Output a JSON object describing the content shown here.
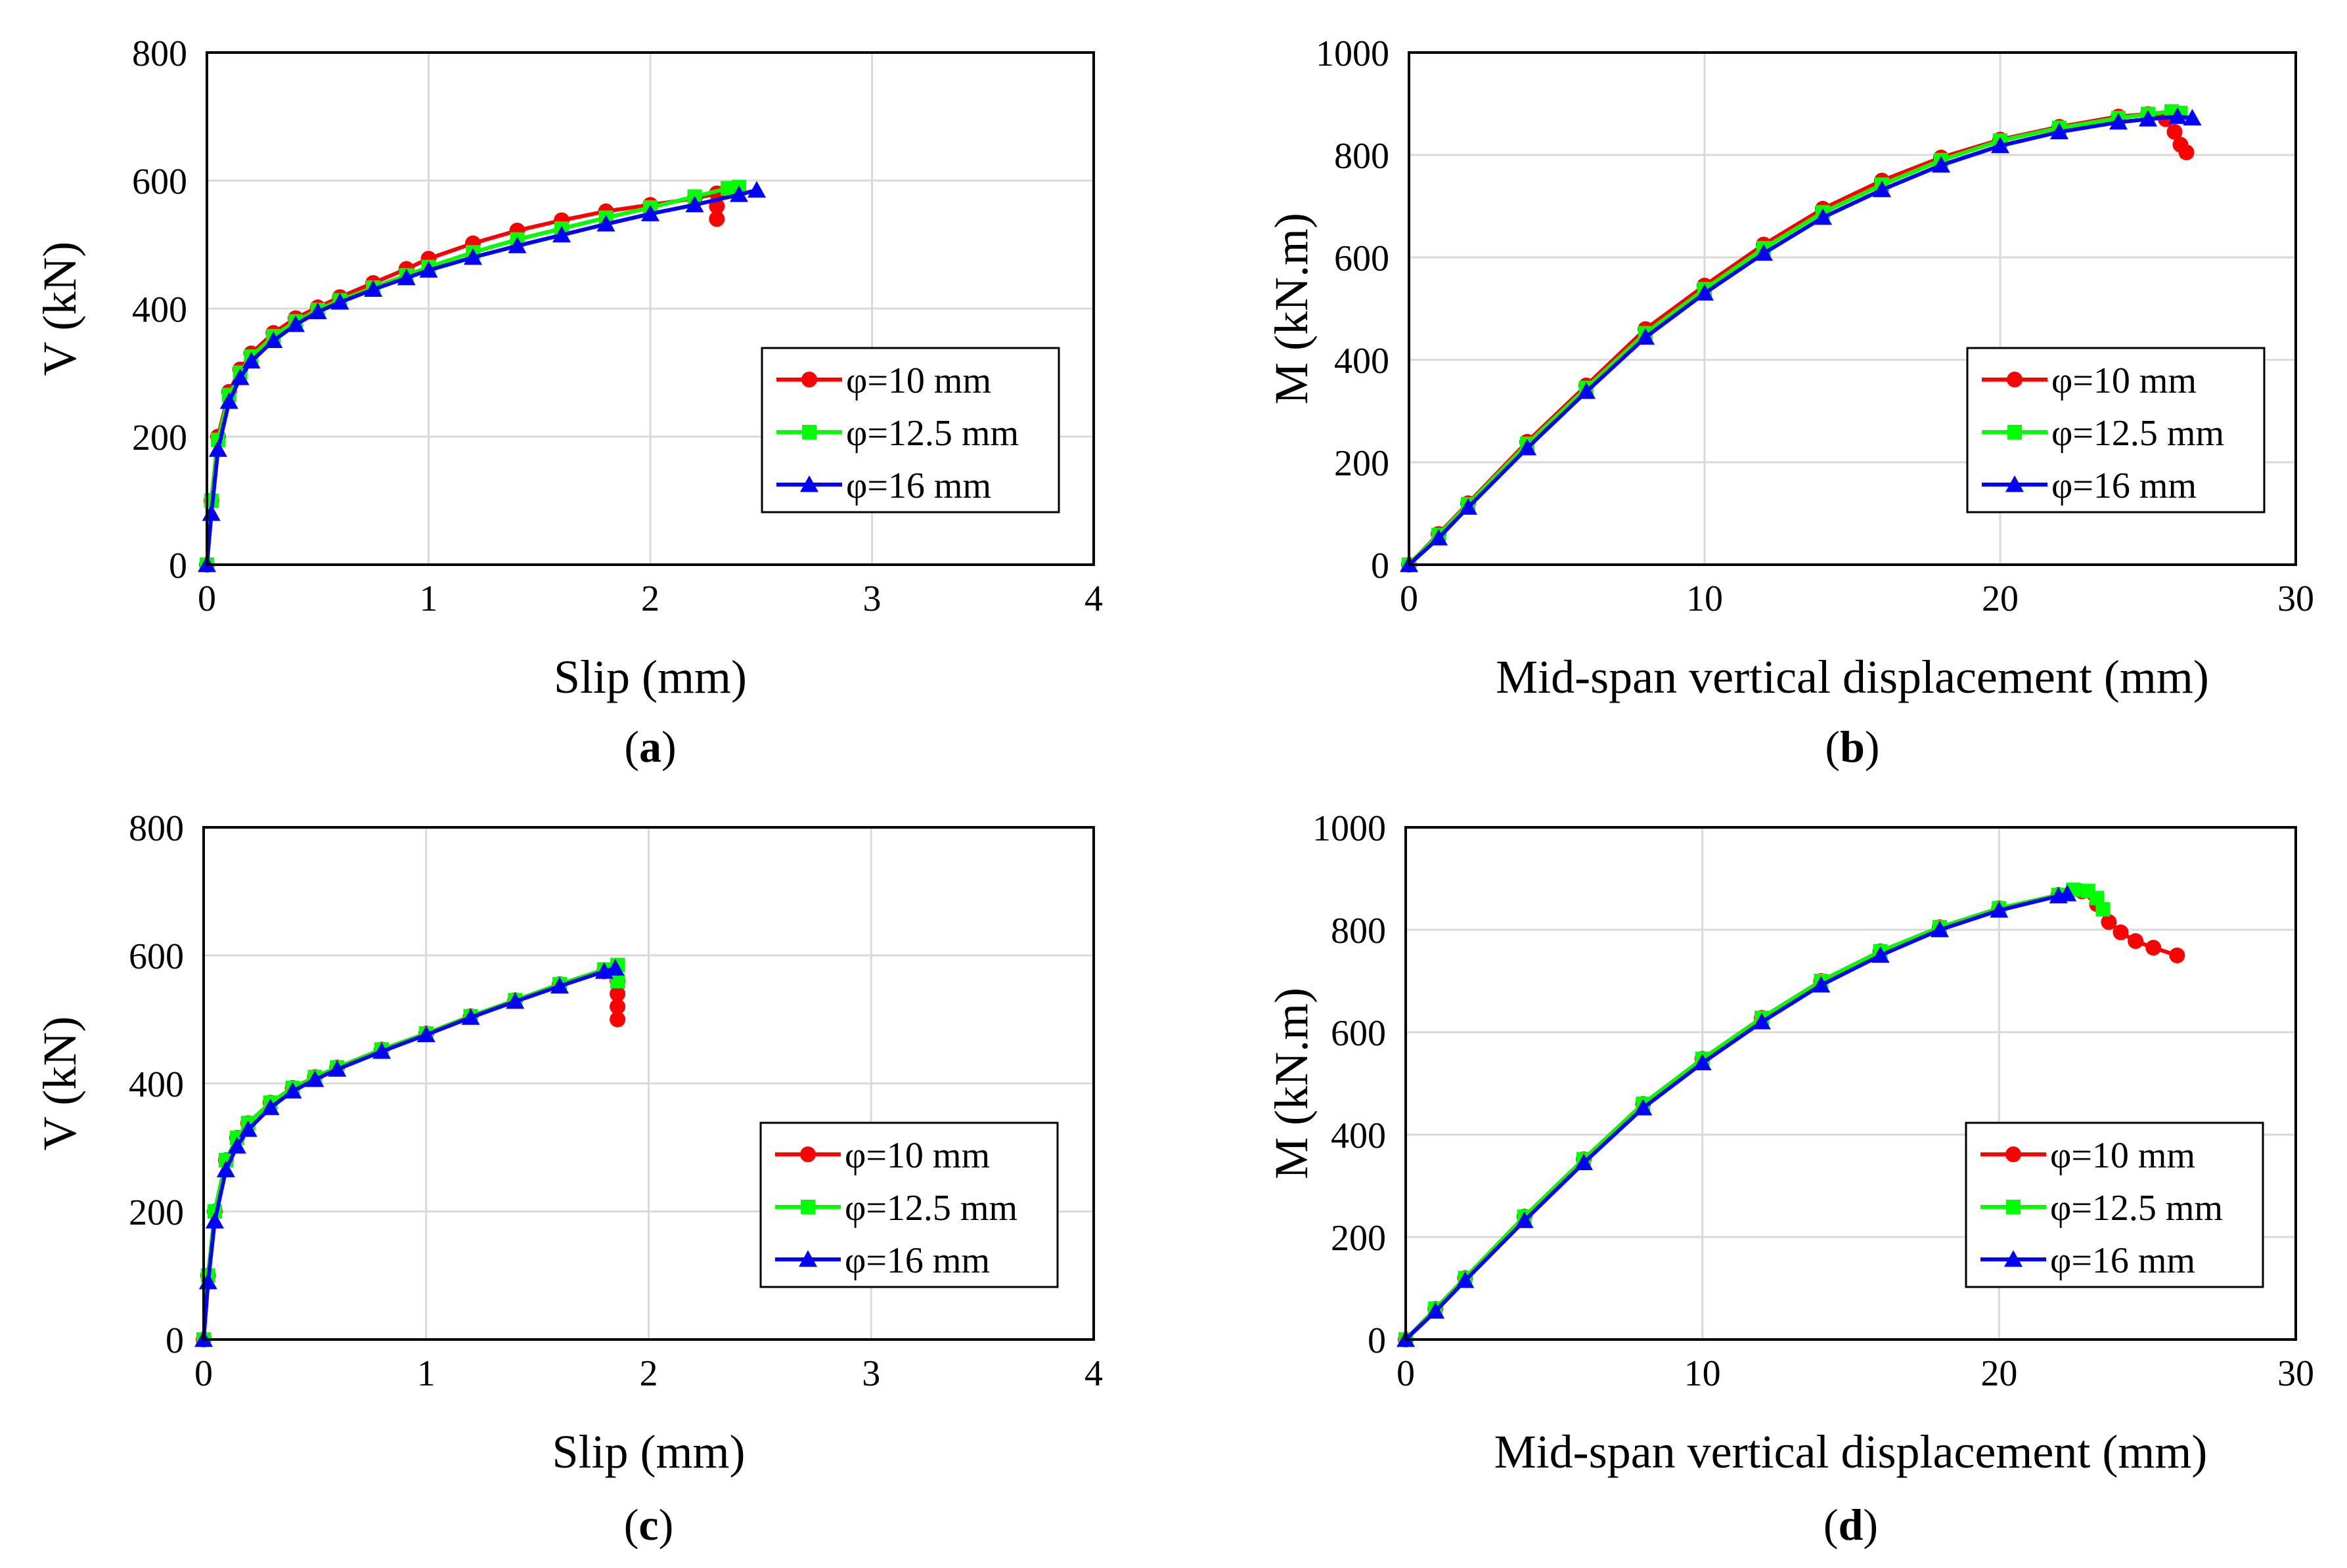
{
  "chart_data": [
    {
      "id": "a",
      "type": "line",
      "caption": "(a)",
      "caption_letter": "a",
      "xlabel": "Slip (mm)",
      "ylabel": "V (kN)",
      "xlim": [
        0,
        4
      ],
      "ylim": [
        0,
        800
      ],
      "xticks": [
        "0",
        "1",
        "2",
        "3",
        "4"
      ],
      "yticks": [
        "0",
        "200",
        "400",
        "600",
        "800"
      ],
      "grid": true,
      "legend_position": "bottom-right",
      "series": [
        {
          "name": "φ=10 mm",
          "color": "#ff0000",
          "marker": "circle",
          "x": [
            0,
            0.02,
            0.05,
            0.1,
            0.15,
            0.2,
            0.3,
            0.4,
            0.5,
            0.6,
            0.75,
            0.9,
            1.0,
            1.2,
            1.4,
            1.6,
            1.8,
            2.0,
            2.2,
            2.3,
            2.3,
            2.3
          ],
          "y": [
            0,
            100,
            200,
            270,
            305,
            330,
            362,
            385,
            402,
            418,
            440,
            462,
            478,
            502,
            522,
            538,
            552,
            562,
            572,
            580,
            560,
            540
          ]
        },
        {
          "name": "φ=12.5 mm",
          "color": "#00ff00",
          "marker": "square",
          "x": [
            0,
            0.02,
            0.05,
            0.1,
            0.15,
            0.2,
            0.3,
            0.4,
            0.5,
            0.6,
            0.75,
            0.9,
            1.0,
            1.2,
            1.4,
            1.6,
            1.8,
            2.0,
            2.2,
            2.35,
            2.4
          ],
          "y": [
            0,
            100,
            195,
            265,
            300,
            325,
            357,
            380,
            398,
            413,
            433,
            452,
            465,
            488,
            508,
            525,
            542,
            558,
            575,
            588,
            590
          ]
        },
        {
          "name": "φ=16 mm",
          "color": "#0000ff",
          "marker": "triangle",
          "x": [
            0,
            0.02,
            0.05,
            0.1,
            0.15,
            0.2,
            0.3,
            0.4,
            0.5,
            0.6,
            0.75,
            0.9,
            1.0,
            1.2,
            1.4,
            1.6,
            1.8,
            2.0,
            2.2,
            2.4,
            2.48
          ],
          "y": [
            0,
            80,
            180,
            255,
            292,
            318,
            350,
            375,
            395,
            410,
            430,
            448,
            460,
            480,
            498,
            515,
            532,
            548,
            562,
            578,
            585
          ]
        }
      ]
    },
    {
      "id": "b",
      "type": "line",
      "caption": "(b)",
      "caption_letter": "b",
      "xlabel": "Mid-span vertical displacement (mm)",
      "ylabel": "M (kN.m)",
      "xlim": [
        0,
        30
      ],
      "ylim": [
        0,
        1000
      ],
      "xticks": [
        "0",
        "10",
        "20",
        "30"
      ],
      "yticks": [
        "0",
        "200",
        "400",
        "600",
        "800",
        "1000"
      ],
      "grid": true,
      "legend_position": "bottom-right",
      "series": [
        {
          "name": "φ=10 mm",
          "color": "#ff0000",
          "marker": "circle",
          "x": [
            0,
            1,
            2,
            4,
            6,
            8,
            10,
            12,
            14,
            16,
            18,
            20,
            22,
            24,
            25,
            25.6,
            25.9,
            26.1,
            26.3
          ],
          "y": [
            0,
            60,
            120,
            240,
            350,
            460,
            545,
            625,
            695,
            750,
            795,
            830,
            855,
            875,
            880,
            870,
            845,
            820,
            805
          ]
        },
        {
          "name": "φ=12.5 mm",
          "color": "#00ff00",
          "marker": "square",
          "x": [
            0,
            1,
            2,
            4,
            6,
            8,
            10,
            12,
            14,
            16,
            18,
            20,
            22,
            24,
            25,
            25.8,
            26.1
          ],
          "y": [
            0,
            58,
            118,
            236,
            345,
            452,
            538,
            618,
            688,
            742,
            790,
            828,
            853,
            872,
            880,
            885,
            882
          ]
        },
        {
          "name": "φ=16 mm",
          "color": "#0000ff",
          "marker": "triangle",
          "x": [
            0,
            1,
            2,
            4,
            6,
            8,
            10,
            12,
            14,
            16,
            18,
            20,
            22,
            24,
            25,
            26,
            26.5
          ],
          "y": [
            0,
            52,
            112,
            228,
            338,
            444,
            530,
            608,
            678,
            732,
            780,
            818,
            845,
            864,
            870,
            875,
            872
          ]
        }
      ]
    },
    {
      "id": "c",
      "type": "line",
      "caption": "(c)",
      "caption_letter": "c",
      "xlabel": "Slip (mm)",
      "ylabel": "V (kN)",
      "xlim": [
        0,
        4
      ],
      "ylim": [
        0,
        800
      ],
      "xticks": [
        "0",
        "1",
        "2",
        "3",
        "4"
      ],
      "yticks": [
        "0",
        "200",
        "400",
        "600",
        "800"
      ],
      "grid": true,
      "legend_position": "bottom-right",
      "series": [
        {
          "name": "φ=10 mm",
          "color": "#ff0000",
          "marker": "circle",
          "x": [
            0,
            0.02,
            0.05,
            0.1,
            0.15,
            0.2,
            0.3,
            0.4,
            0.5,
            0.6,
            0.8,
            1.0,
            1.2,
            1.4,
            1.6,
            1.8,
            1.86,
            1.86,
            1.86,
            1.86
          ],
          "y": [
            0,
            100,
            200,
            280,
            315,
            338,
            370,
            393,
            410,
            425,
            453,
            478,
            505,
            530,
            555,
            575,
            560,
            540,
            520,
            500
          ]
        },
        {
          "name": "φ=12.5 mm",
          "color": "#00ff00",
          "marker": "square",
          "x": [
            0,
            0.02,
            0.05,
            0.1,
            0.15,
            0.2,
            0.3,
            0.4,
            0.5,
            0.6,
            0.8,
            1.0,
            1.2,
            1.4,
            1.6,
            1.8,
            1.86,
            1.86
          ],
          "y": [
            0,
            100,
            200,
            280,
            315,
            338,
            370,
            393,
            410,
            425,
            453,
            478,
            505,
            530,
            555,
            578,
            585,
            560
          ]
        },
        {
          "name": "φ=16 mm",
          "color": "#0000ff",
          "marker": "triangle",
          "x": [
            0,
            0.02,
            0.05,
            0.1,
            0.15,
            0.2,
            0.3,
            0.4,
            0.5,
            0.6,
            0.8,
            1.0,
            1.2,
            1.4,
            1.6,
            1.8,
            1.85
          ],
          "y": [
            0,
            90,
            185,
            265,
            302,
            328,
            362,
            388,
            406,
            422,
            450,
            476,
            503,
            528,
            552,
            575,
            580
          ]
        }
      ]
    },
    {
      "id": "d",
      "type": "line",
      "caption": "(d)",
      "caption_letter": "d",
      "xlabel": "Mid-span vertical displacement (mm)",
      "ylabel": "M (kN.m)",
      "xlim": [
        0,
        30
      ],
      "ylim": [
        0,
        1000
      ],
      "xticks": [
        "0",
        "10",
        "20",
        "30"
      ],
      "yticks": [
        "0",
        "200",
        "400",
        "600",
        "800",
        "1000"
      ],
      "grid": true,
      "legend_position": "bottom-right",
      "series": [
        {
          "name": "φ=10 mm",
          "color": "#ff0000",
          "marker": "circle",
          "x": [
            0,
            1,
            2,
            4,
            6,
            8,
            10,
            12,
            14,
            16,
            18,
            20,
            22,
            22.8,
            23.3,
            23.7,
            24.1,
            24.6,
            25.2,
            26
          ],
          "y": [
            0,
            60,
            120,
            240,
            352,
            460,
            548,
            628,
            700,
            758,
            805,
            842,
            868,
            875,
            850,
            815,
            795,
            778,
            765,
            750
          ]
        },
        {
          "name": "φ=12.5 mm",
          "color": "#00ff00",
          "marker": "square",
          "x": [
            0,
            1,
            2,
            4,
            6,
            8,
            10,
            12,
            14,
            16,
            18,
            20,
            22,
            22.5,
            23,
            23.3,
            23.5
          ],
          "y": [
            0,
            60,
            120,
            240,
            352,
            460,
            548,
            628,
            700,
            758,
            805,
            842,
            868,
            878,
            876,
            862,
            840
          ]
        },
        {
          "name": "φ=16 mm",
          "color": "#0000ff",
          "marker": "triangle",
          "x": [
            0,
            1,
            2,
            4,
            6,
            8,
            10,
            12,
            14,
            16,
            18,
            20,
            22,
            22.3
          ],
          "y": [
            0,
            55,
            115,
            232,
            345,
            452,
            540,
            620,
            692,
            750,
            800,
            838,
            866,
            870
          ]
        }
      ]
    }
  ]
}
